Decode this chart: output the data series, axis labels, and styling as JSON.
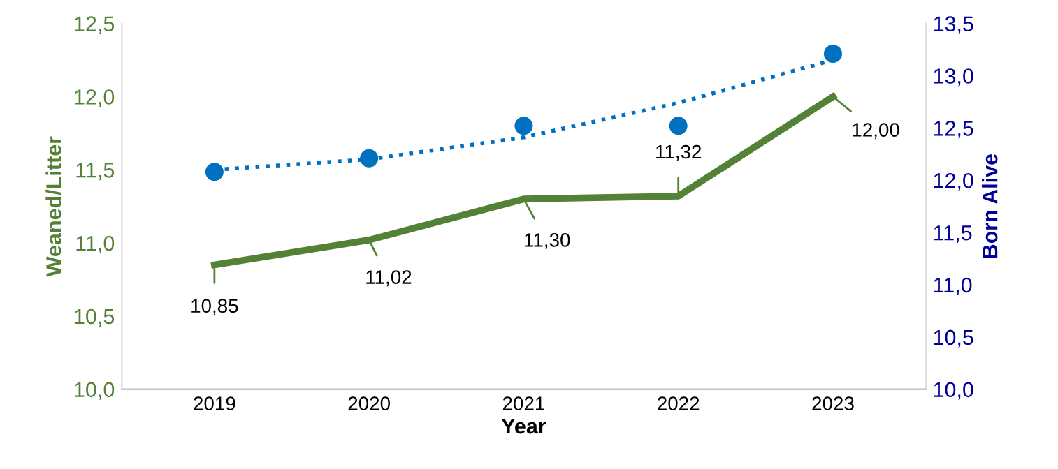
{
  "chart_data": {
    "type": "line",
    "xlabel": "Year",
    "ylabel": "Weaned/Litter",
    "y2label": "Born Alive",
    "categories": [
      "2019",
      "2020",
      "2021",
      "2022",
      "2023"
    ],
    "series": [
      {
        "color": "#538135",
        "values": [
          10.85,
          11.02,
          11.3,
          11.32,
          12.0
        ],
        "value_labels": [
          "10,85",
          "11,02",
          "11,30",
          "11,32",
          "12,00"
        ],
        "marker": "none",
        "line_style": "solid"
      },
      {
        "type": "scatter",
        "axis": "y2",
        "color": "#0070c0",
        "values": [
          12.08,
          12.21,
          12.52,
          12.52,
          13.21
        ],
        "marker": "circle"
      },
      {
        "axis": "y2",
        "color": "#0070c0",
        "values": [
          12.1,
          12.2,
          12.41,
          12.74,
          13.15
        ],
        "marker": "none",
        "line_style": "dotted"
      }
    ],
    "ylim": [
      10.0,
      12.5
    ],
    "yticks": [
      {
        "value": 10.0,
        "label": "10,0"
      },
      {
        "value": 10.5,
        "label": "10,5"
      },
      {
        "value": 11.0,
        "label": "11,0"
      },
      {
        "value": 11.5,
        "label": "11,5"
      },
      {
        "value": 12.0,
        "label": "12,0"
      },
      {
        "value": 12.5,
        "label": "12,5"
      }
    ],
    "y2lim": [
      10.0,
      13.5
    ],
    "y2ticks": [
      {
        "value": 10.0,
        "label": "10,0"
      },
      {
        "value": 10.5,
        "label": "10,5"
      },
      {
        "value": 11.0,
        "label": "11,0"
      },
      {
        "value": 11.5,
        "label": "11,5"
      },
      {
        "value": 12.0,
        "label": "12,0"
      },
      {
        "value": 12.5,
        "label": "12,5"
      },
      {
        "value": 13.0,
        "label": "13,0"
      },
      {
        "value": 13.5,
        "label": "13,5"
      }
    ],
    "grid": false,
    "legend": false
  }
}
